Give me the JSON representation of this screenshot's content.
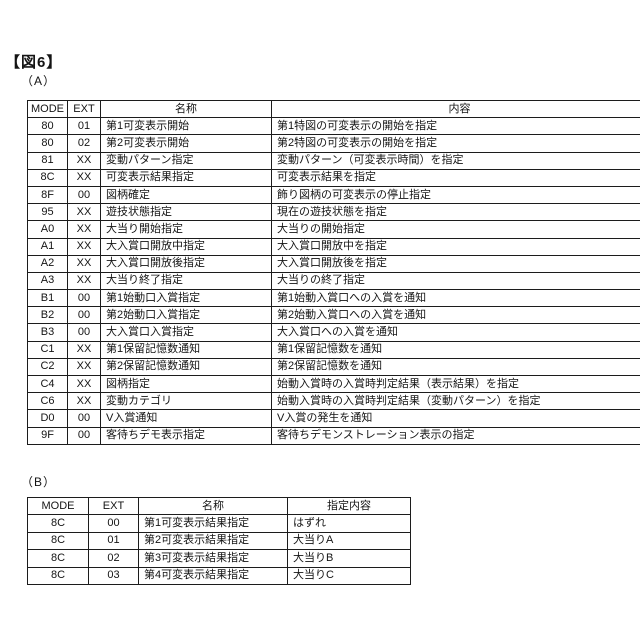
{
  "figure_title": "【図6】",
  "colors": {
    "background": "#ffffff",
    "border": "#1c1c1c",
    "text": "#141414"
  },
  "tables": [
    {
      "label": "（A）",
      "headers": [
        "MODE",
        "EXT",
        "名称",
        "内容"
      ],
      "rows": [
        [
          "80",
          "01",
          "第1可変表示開始",
          "第1特図の可変表示の開始を指定"
        ],
        [
          "80",
          "02",
          "第2可変表示開始",
          "第2特図の可変表示の開始を指定"
        ],
        [
          "81",
          "XX",
          "変動パターン指定",
          "変動パターン（可変表示時間）を指定"
        ],
        [
          "8C",
          "XX",
          "可変表示結果指定",
          "可変表示結果を指定"
        ],
        [
          "8F",
          "00",
          "図柄確定",
          "飾り図柄の可変表示の停止指定"
        ],
        [
          "95",
          "XX",
          "遊技状態指定",
          "現在の遊技状態を指定"
        ],
        [
          "A0",
          "XX",
          "大当り開始指定",
          "大当りの開始指定"
        ],
        [
          "A1",
          "XX",
          "大入賞口開放中指定",
          "大入賞口開放中を指定"
        ],
        [
          "A2",
          "XX",
          "大入賞口開放後指定",
          "大入賞口開放後を指定"
        ],
        [
          "A3",
          "XX",
          "大当り終了指定",
          "大当りの終了指定"
        ],
        [
          "B1",
          "00",
          "第1始動口入賞指定",
          "第1始動入賞口への入賞を通知"
        ],
        [
          "B2",
          "00",
          "第2始動口入賞指定",
          "第2始動入賞口への入賞を通知"
        ],
        [
          "B3",
          "00",
          "大入賞口入賞指定",
          "大入賞口への入賞を通知"
        ],
        [
          "C1",
          "XX",
          "第1保留記憶数通知",
          "第1保留記憶数を通知"
        ],
        [
          "C2",
          "XX",
          "第2保留記憶数通知",
          "第2保留記憶数を通知"
        ],
        [
          "C4",
          "XX",
          "図柄指定",
          "始動入賞時の入賞時判定結果（表示結果）を指定"
        ],
        [
          "C6",
          "XX",
          "変動カテゴリ",
          "始動入賞時の入賞時判定結果（変動パターン）を指定"
        ],
        [
          "D0",
          "00",
          "V入賞通知",
          "V入賞の発生を通知"
        ],
        [
          "9F",
          "00",
          "客待ちデモ表示指定",
          "客待ちデモンストレーション表示の指定"
        ]
      ]
    },
    {
      "label": "（B）",
      "headers": [
        "MODE",
        "EXT",
        "名称",
        "指定内容"
      ],
      "rows": [
        [
          "8C",
          "00",
          "第1可変表示結果指定",
          "はずれ"
        ],
        [
          "8C",
          "01",
          "第2可変表示結果指定",
          "大当りA"
        ],
        [
          "8C",
          "02",
          "第3可変表示結果指定",
          "大当りB"
        ],
        [
          "8C",
          "03",
          "第4可変表示結果指定",
          "大当りC"
        ]
      ]
    }
  ]
}
